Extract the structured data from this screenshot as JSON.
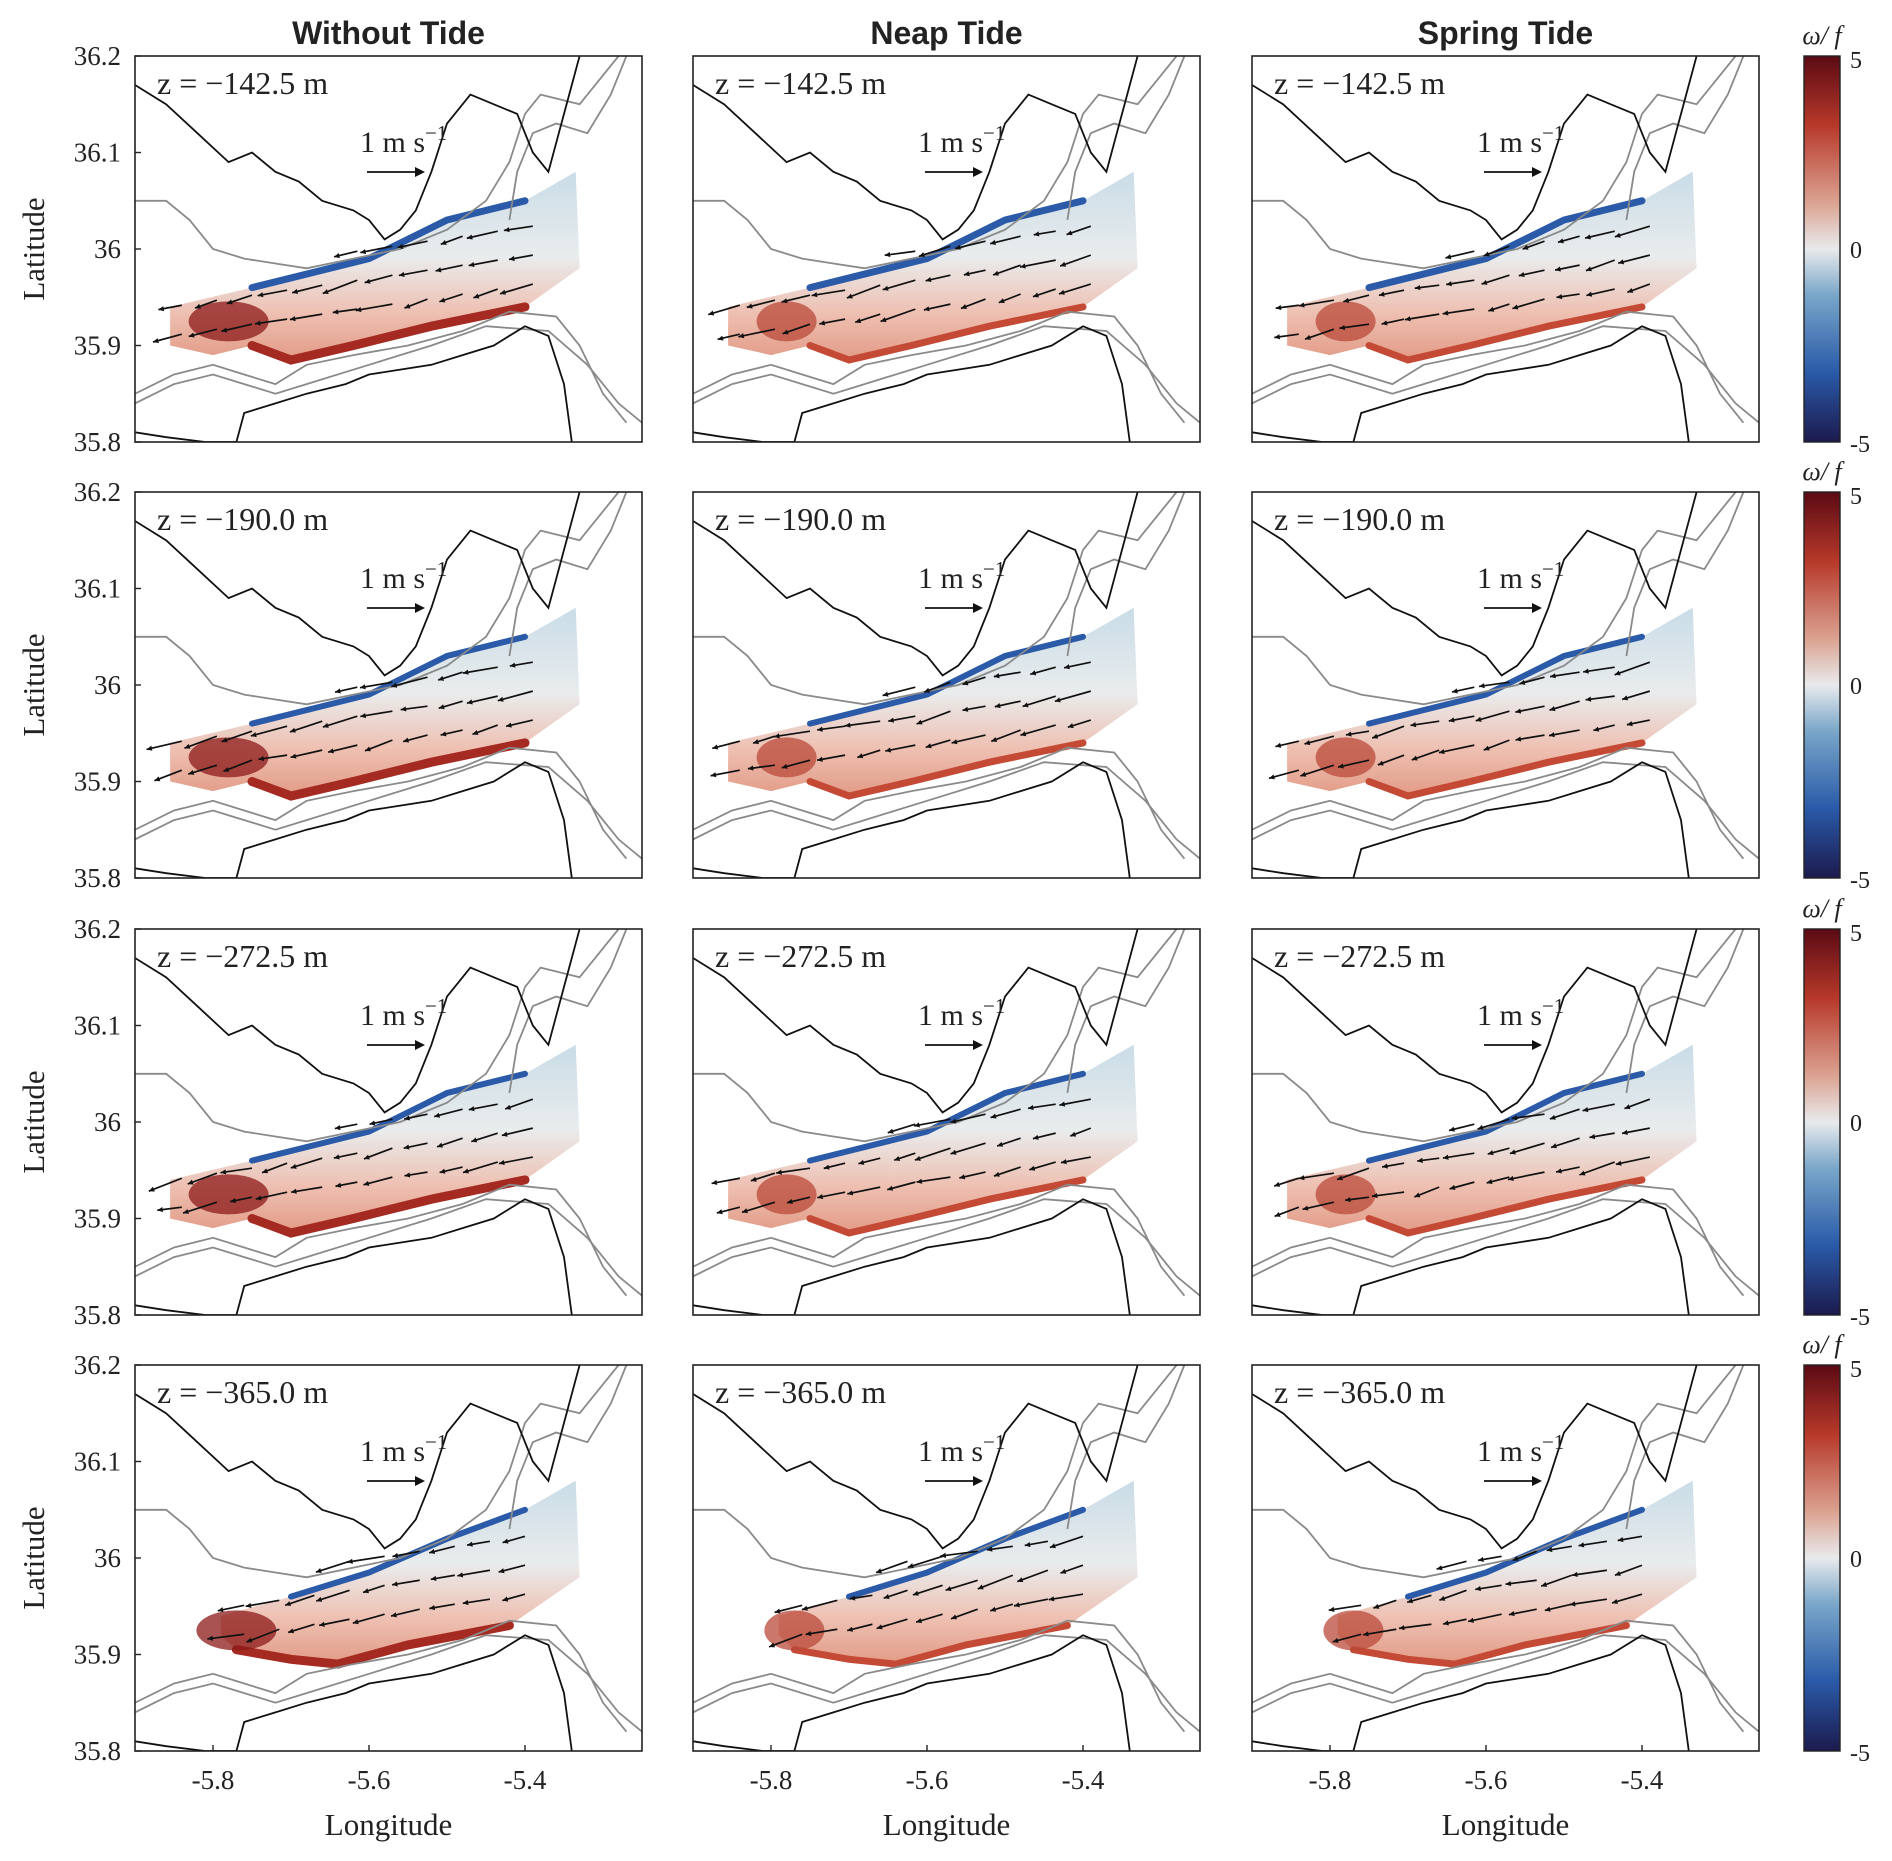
{
  "chart_data": {
    "type": "heatmap",
    "description_type": "map panels with vorticity colormap and velocity vectors",
    "columns": [
      "Without Tide",
      "Neap Tide",
      "Spring Tide"
    ],
    "depths": [
      "z = −142.5 m",
      "z = −190.0 m",
      "z = −272.5 m",
      "z = −365.0 m"
    ],
    "xlabel": "Longitude",
    "ylabel": "Latitude",
    "xticks": [
      "-5.8",
      "-5.6",
      "-5.4"
    ],
    "xtick_values": [
      -5.8,
      -5.6,
      -5.4
    ],
    "yticks": [
      "36.2",
      "36.1",
      "36",
      "35.9",
      "35.8"
    ],
    "ytick_values": [
      36.2,
      36.1,
      36.0,
      35.9,
      35.8
    ],
    "xlim": [
      -5.9,
      -5.25
    ],
    "ylim": [
      35.8,
      36.2
    ],
    "scale_arrow_label": "1 m s",
    "scale_arrow_exp": "−1",
    "colorbar": {
      "label": "ω/ f",
      "ticks": [
        "5",
        "0",
        "-5"
      ],
      "range": [
        -5,
        5
      ],
      "colors": [
        "#1c1a4e",
        "#2a5aa8",
        "#79a6c9",
        "#e8eaec",
        "#dba291",
        "#b7392a",
        "#5b0a14"
      ]
    }
  }
}
